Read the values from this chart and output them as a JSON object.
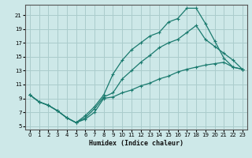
{
  "title": "",
  "xlabel": "Humidex (Indice chaleur)",
  "bg_color": "#cde8e8",
  "grid_color": "#aacccc",
  "line_color": "#1a7a6e",
  "xlim": [
    -0.5,
    23.5
  ],
  "ylim": [
    4.5,
    22.5
  ],
  "xticks": [
    0,
    1,
    2,
    3,
    4,
    5,
    6,
    7,
    8,
    9,
    10,
    11,
    12,
    13,
    14,
    15,
    16,
    17,
    18,
    19,
    20,
    21,
    22,
    23
  ],
  "yticks": [
    5,
    7,
    9,
    11,
    13,
    15,
    17,
    19,
    21
  ],
  "line1_x": [
    0,
    1,
    2,
    3,
    4,
    5,
    6,
    7,
    8,
    9,
    10,
    11,
    12,
    13,
    14,
    15,
    16,
    17,
    18,
    19,
    20,
    21,
    22,
    23
  ],
  "line1_y": [
    9.5,
    8.5,
    8.0,
    7.2,
    6.2,
    5.5,
    6.2,
    7.5,
    9.2,
    9.8,
    11.8,
    13.0,
    14.2,
    15.2,
    16.3,
    17.0,
    17.5,
    18.5,
    19.5,
    17.5,
    16.5,
    15.5,
    14.5,
    13.2
  ],
  "line2_x": [
    0,
    1,
    2,
    3,
    4,
    5,
    6,
    7,
    8,
    9,
    10,
    11,
    12,
    13,
    14,
    15,
    16,
    17,
    18,
    19,
    20,
    21,
    22,
    23
  ],
  "line2_y": [
    9.5,
    8.5,
    8.0,
    7.2,
    6.2,
    5.5,
    6.5,
    7.8,
    9.5,
    12.5,
    14.5,
    16.0,
    17.0,
    18.0,
    18.5,
    20.0,
    20.5,
    22.0,
    22.0,
    19.8,
    17.3,
    14.8,
    13.5,
    13.2
  ],
  "line3_x": [
    0,
    1,
    2,
    3,
    4,
    5,
    6,
    7,
    8,
    9,
    10,
    11,
    12,
    13,
    14,
    15,
    16,
    17,
    18,
    19,
    20,
    21,
    22,
    23
  ],
  "line3_y": [
    9.5,
    8.5,
    8.0,
    7.2,
    6.2,
    5.5,
    6.0,
    7.0,
    9.0,
    9.2,
    9.8,
    10.2,
    10.8,
    11.2,
    11.8,
    12.2,
    12.8,
    13.2,
    13.5,
    13.8,
    14.0,
    14.2,
    13.5,
    13.2
  ]
}
